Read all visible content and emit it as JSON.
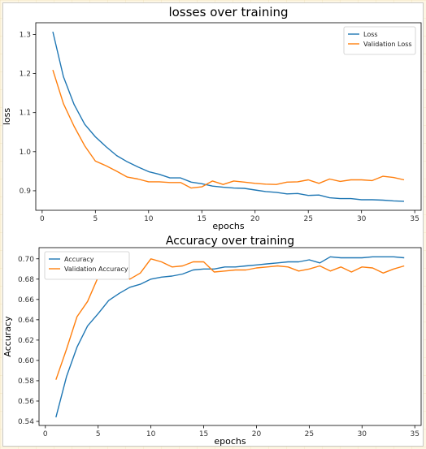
{
  "chart_data": [
    {
      "type": "line",
      "title": "losses over training",
      "xlabel": "epochs",
      "ylabel": "loss",
      "xlim": [
        -0.6,
        35.6
      ],
      "ylim": [
        0.85,
        1.33
      ],
      "xticks": [
        0,
        5,
        10,
        15,
        20,
        25,
        30,
        35
      ],
      "yticks": [
        0.9,
        1.0,
        1.1,
        1.2,
        1.3
      ],
      "ytick_decimals": 1,
      "legend": "top-right",
      "grid": false,
      "x": [
        1,
        2,
        3,
        4,
        5,
        6,
        7,
        8,
        9,
        10,
        11,
        12,
        13,
        14,
        15,
        16,
        17,
        18,
        19,
        20,
        21,
        22,
        23,
        24,
        25,
        26,
        27,
        28,
        29,
        30,
        31,
        32,
        33,
        34
      ],
      "series": [
        {
          "name": "Loss",
          "color": "#1f77b4",
          "values": [
            1.307,
            1.192,
            1.121,
            1.07,
            1.038,
            1.013,
            0.99,
            0.974,
            0.961,
            0.949,
            0.942,
            0.933,
            0.933,
            0.922,
            0.918,
            0.912,
            0.909,
            0.907,
            0.906,
            0.902,
            0.898,
            0.896,
            0.892,
            0.893,
            0.888,
            0.889,
            0.882,
            0.88,
            0.88,
            0.877,
            0.877,
            0.876,
            0.874,
            0.873
          ]
        },
        {
          "name": "Validation Loss",
          "color": "#ff7f0e",
          "values": [
            1.209,
            1.123,
            1.065,
            1.015,
            0.976,
            0.964,
            0.95,
            0.935,
            0.93,
            0.923,
            0.923,
            0.921,
            0.921,
            0.907,
            0.91,
            0.925,
            0.916,
            0.925,
            0.922,
            0.919,
            0.917,
            0.916,
            0.922,
            0.923,
            0.928,
            0.919,
            0.93,
            0.924,
            0.928,
            0.928,
            0.926,
            0.937,
            0.934,
            0.928
          ]
        }
      ]
    },
    {
      "type": "line",
      "title": "Accuracy over training",
      "xlabel": "epochs",
      "ylabel": "Accuracy",
      "xlim": [
        -0.6,
        35.6
      ],
      "ylim": [
        0.536,
        0.711
      ],
      "xticks": [
        0,
        5,
        10,
        15,
        20,
        25,
        30,
        35
      ],
      "yticks": [
        0.54,
        0.56,
        0.58,
        0.6,
        0.62,
        0.64,
        0.66,
        0.68,
        0.7
      ],
      "ytick_decimals": 2,
      "legend": "top-left",
      "grid": false,
      "x": [
        1,
        2,
        3,
        4,
        5,
        6,
        7,
        8,
        9,
        10,
        11,
        12,
        13,
        14,
        15,
        16,
        17,
        18,
        19,
        20,
        21,
        22,
        23,
        24,
        25,
        26,
        27,
        28,
        29,
        30,
        31,
        32,
        33,
        34
      ],
      "series": [
        {
          "name": "Accuracy",
          "color": "#1f77b4",
          "values": [
            0.544,
            0.584,
            0.613,
            0.634,
            0.646,
            0.659,
            0.666,
            0.672,
            0.675,
            0.68,
            0.682,
            0.683,
            0.685,
            0.689,
            0.69,
            0.69,
            0.692,
            0.692,
            0.693,
            0.694,
            0.695,
            0.696,
            0.697,
            0.697,
            0.699,
            0.696,
            0.702,
            0.701,
            0.701,
            0.701,
            0.702,
            0.702,
            0.702,
            0.701
          ]
        },
        {
          "name": "Validation Accuracy",
          "color": "#ff7f0e",
          "values": [
            0.581,
            0.611,
            0.643,
            0.658,
            0.682,
            0.685,
            0.687,
            0.68,
            0.686,
            0.7,
            0.697,
            0.692,
            0.693,
            0.697,
            0.697,
            0.687,
            0.688,
            0.689,
            0.689,
            0.691,
            0.692,
            0.693,
            0.692,
            0.688,
            0.69,
            0.693,
            0.688,
            0.692,
            0.687,
            0.692,
            0.691,
            0.686,
            0.69,
            0.693
          ]
        }
      ]
    }
  ]
}
